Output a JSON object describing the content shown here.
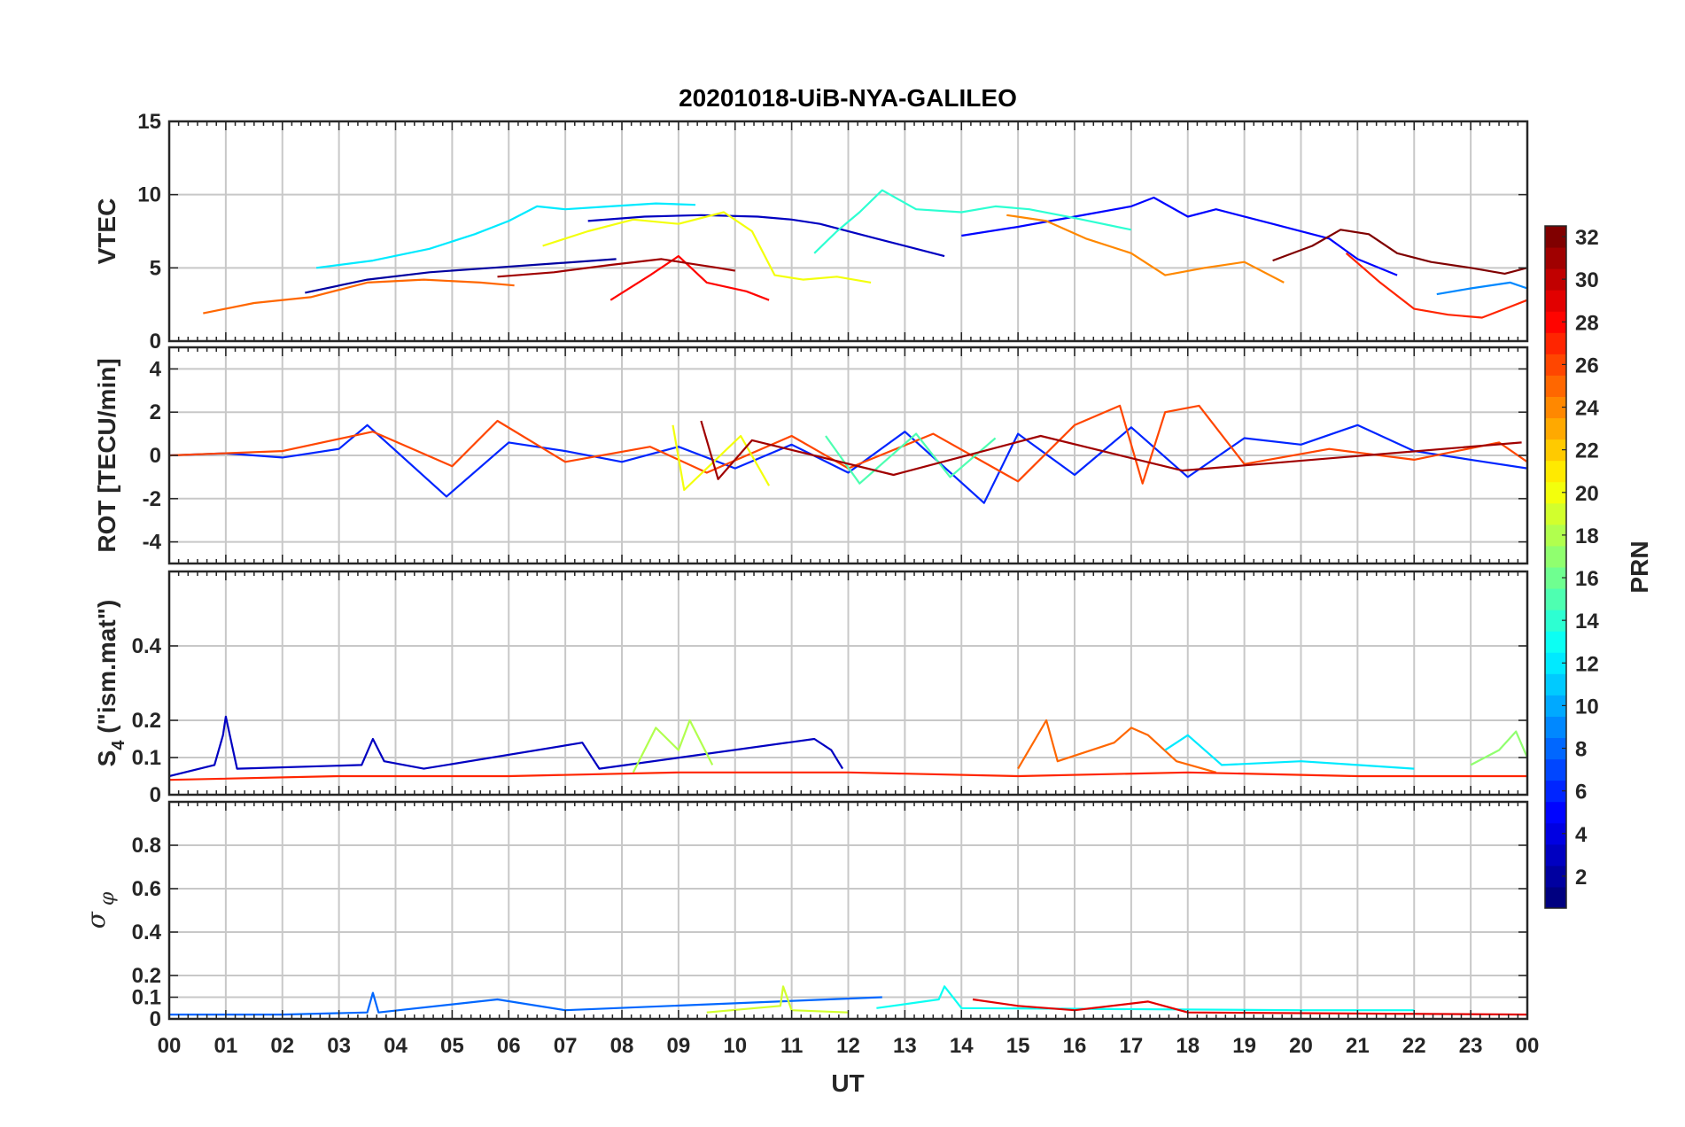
{
  "chart_data": {
    "type": "line",
    "title": "20201018-UiB-NYA-GALILEO",
    "xlabel": "UT",
    "x_ticks": [
      "00",
      "01",
      "02",
      "03",
      "04",
      "05",
      "06",
      "07",
      "08",
      "09",
      "10",
      "11",
      "12",
      "13",
      "14",
      "15",
      "16",
      "17",
      "18",
      "19",
      "20",
      "21",
      "22",
      "23",
      "00"
    ],
    "xlim_hours": [
      0,
      24
    ],
    "grid": true,
    "panels": [
      {
        "id": "vtec",
        "ylabel": "VTEC",
        "ylim": [
          0,
          15
        ],
        "yticks": [
          "0",
          "5",
          "10",
          "15"
        ],
        "yticks_values": [
          0,
          5,
          10,
          15
        ],
        "series": [
          {
            "prn": 2,
            "x": [
              2.4,
              3.5,
              4.6,
              5.7,
              6.8,
              7.9
            ],
            "y": [
              3.3,
              4.2,
              4.7,
              5.0,
              5.3,
              5.6
            ]
          },
          {
            "prn": 3,
            "x": [
              7.4,
              8.4,
              9.4,
              10.4,
              11.0,
              11.5,
              12.5,
              13.7
            ],
            "y": [
              8.2,
              8.5,
              8.6,
              8.5,
              8.3,
              8.0,
              7.0,
              5.8
            ]
          },
          {
            "prn": 5,
            "x": [
              14.0,
              15.0,
              16.0,
              17.0,
              17.4,
              18.0,
              18.5,
              19.5,
              20.5,
              21.0,
              21.7
            ],
            "y": [
              7.2,
              7.8,
              8.5,
              9.2,
              9.8,
              8.5,
              9.0,
              8.0,
              7.0,
              5.6,
              4.5
            ]
          },
          {
            "prn": 9,
            "x": [
              22.4,
              23.0,
              23.7,
              24.0
            ],
            "y": [
              3.2,
              3.6,
              4.0,
              3.6
            ]
          },
          {
            "prn": 12,
            "x": [
              2.6,
              3.6,
              4.6,
              5.4,
              6.0,
              6.5,
              7.0,
              7.8,
              8.6,
              9.3
            ],
            "y": [
              5.0,
              5.5,
              6.3,
              7.3,
              8.2,
              9.2,
              9.0,
              9.2,
              9.4,
              9.3
            ]
          },
          {
            "prn": 14,
            "x": [
              11.4,
              11.8,
              12.2,
              12.6,
              13.2,
              14.0,
              14.6,
              15.2,
              16.0,
              17.0
            ],
            "y": [
              6.0,
              7.5,
              8.8,
              10.3,
              9.0,
              8.8,
              9.2,
              9.0,
              8.4,
              7.6
            ]
          },
          {
            "prn": 20,
            "x": [
              6.6,
              7.4,
              8.2,
              9.0,
              9.8,
              10.3,
              10.7,
              11.2,
              11.8,
              12.4
            ],
            "y": [
              6.5,
              7.5,
              8.3,
              8.0,
              8.8,
              7.5,
              4.5,
              4.2,
              4.4,
              4.0
            ]
          },
          {
            "prn": 25,
            "x": [
              0.6,
              1.5,
              2.5,
              3.5,
              4.5,
              5.5,
              6.1
            ],
            "y": [
              1.9,
              2.6,
              3.0,
              4.0,
              4.2,
              4.0,
              3.8
            ]
          },
          {
            "prn": 28,
            "x": [
              7.8,
              8.5,
              9.0,
              9.5,
              10.2,
              10.6
            ],
            "y": [
              2.8,
              4.5,
              5.8,
              4.0,
              3.4,
              2.8
            ]
          },
          {
            "prn": 31,
            "x": [
              5.8,
              6.8,
              7.8,
              8.7,
              9.2,
              9.7,
              10.0
            ],
            "y": [
              4.4,
              4.7,
              5.2,
              5.6,
              5.3,
              5.0,
              4.8
            ]
          },
          {
            "prn": 32,
            "x": [
              19.5,
              20.2,
              20.7,
              21.2,
              21.7,
              22.3,
              23.0,
              23.6,
              24.0
            ],
            "y": [
              5.5,
              6.5,
              7.6,
              7.3,
              6.0,
              5.4,
              5.0,
              4.6,
              5.0
            ]
          },
          {
            "prn": 24,
            "x": [
              14.8,
              15.5,
              16.2,
              17.0,
              17.6,
              18.3,
              19.0,
              19.7
            ],
            "y": [
              8.6,
              8.2,
              7.0,
              6.0,
              4.5,
              5.0,
              5.4,
              4.0
            ]
          },
          {
            "prn": 27,
            "x": [
              20.8,
              21.4,
              22.0,
              22.6,
              23.2,
              23.6,
              24.0
            ],
            "y": [
              6.0,
              4.0,
              2.2,
              1.8,
              1.6,
              2.2,
              2.8
            ]
          }
        ]
      },
      {
        "id": "rot",
        "ylabel": "ROT [TECU/min]",
        "ylim": [
          -5,
          5
        ],
        "yticks": [
          "-4",
          "-2",
          "0",
          "2",
          "4"
        ],
        "yticks_values": [
          -4,
          -2,
          0,
          2,
          4
        ],
        "series": [
          {
            "prn": 6,
            "x": [
              0,
              1,
              2,
              3,
              3.5,
              4.9,
              6,
              7,
              8,
              9,
              10,
              11,
              12,
              13,
              14.4,
              15,
              16,
              17,
              18,
              19,
              20,
              21,
              22,
              23,
              24
            ],
            "y": [
              0,
              0.1,
              -0.1,
              0.3,
              1.4,
              -1.9,
              0.6,
              0.2,
              -0.3,
              0.4,
              -0.6,
              0.5,
              -0.8,
              1.1,
              -2.2,
              1.0,
              -0.9,
              1.3,
              -1.0,
              0.8,
              0.5,
              1.4,
              0.2,
              -0.2,
              -0.6
            ]
          },
          {
            "prn": 26,
            "x": [
              0,
              2,
              3.6,
              5,
              5.8,
              7,
              8.5,
              9.5,
              11,
              12,
              13.5,
              15,
              16,
              16.8,
              17.2,
              17.6,
              18.2,
              19,
              20.5,
              22,
              23.5,
              24
            ],
            "y": [
              0,
              0.2,
              1.1,
              -0.5,
              1.6,
              -0.3,
              0.4,
              -0.8,
              0.9,
              -0.6,
              1.0,
              -1.2,
              1.4,
              2.3,
              -1.3,
              2.0,
              2.3,
              -0.4,
              0.3,
              -0.2,
              0.6,
              -0.3
            ]
          },
          {
            "prn": 20,
            "x": [
              8.9,
              9.1,
              10.1,
              10.6
            ],
            "y": [
              1.4,
              -1.6,
              0.9,
              -1.4
            ]
          },
          {
            "prn": 15,
            "x": [
              11.6,
              12.2,
              13.2,
              13.8,
              14.6
            ],
            "y": [
              0.9,
              -1.3,
              1.0,
              -1.0,
              0.8
            ]
          },
          {
            "prn": 31,
            "x": [
              9.4,
              9.7,
              10.3,
              12.8,
              15.4,
              17.9,
              23.9
            ],
            "y": [
              1.6,
              -1.1,
              0.7,
              -0.9,
              0.9,
              -0.7,
              0.6
            ]
          }
        ]
      },
      {
        "id": "s4",
        "ylabel_main": "S",
        "ylabel_sub": "4",
        "ylabel_rest": " (\"ism.mat\")",
        "ylim": [
          0,
          0.6
        ],
        "yticks": [
          "0",
          "0.1",
          "0.2",
          "0.4"
        ],
        "yticks_values": [
          0,
          0.1,
          0.2,
          0.4
        ],
        "series": [
          {
            "prn": 3,
            "x": [
              0,
              0.8,
              0.95,
              1.0,
              1.2,
              3.4,
              3.6,
              3.8,
              4.5,
              7.3,
              7.6,
              11.4,
              11.7,
              11.9
            ],
            "y": [
              0.05,
              0.08,
              0.16,
              0.21,
              0.07,
              0.08,
              0.15,
              0.09,
              0.07,
              0.14,
              0.07,
              0.15,
              0.12,
              0.07
            ]
          },
          {
            "prn": 18,
            "x": [
              8.2,
              8.6,
              9.0,
              9.2,
              9.6
            ],
            "y": [
              0.06,
              0.18,
              0.12,
              0.2,
              0.08
            ]
          },
          {
            "prn": 25,
            "x": [
              15.0,
              15.5,
              15.7,
              16.7,
              17.0,
              17.3,
              17.8,
              18.5
            ],
            "y": [
              0.07,
              0.2,
              0.09,
              0.14,
              0.18,
              0.16,
              0.09,
              0.06
            ]
          },
          {
            "prn": 12,
            "x": [
              17.6,
              18.0,
              18.6,
              20.0,
              21.0,
              22.0
            ],
            "y": [
              0.12,
              0.16,
              0.08,
              0.09,
              0.08,
              0.07
            ]
          },
          {
            "prn": 27,
            "x": [
              0,
              3,
              6,
              9,
              12,
              15,
              18,
              21,
              24
            ],
            "y": [
              0.04,
              0.05,
              0.05,
              0.06,
              0.06,
              0.05,
              0.06,
              0.05,
              0.05
            ]
          },
          {
            "prn": 17,
            "x": [
              23.0,
              23.5,
              23.8,
              24.0
            ],
            "y": [
              0.08,
              0.12,
              0.17,
              0.1
            ]
          }
        ]
      },
      {
        "id": "sigma",
        "ylabel_symbol": "σ",
        "ylabel_sub": "φ",
        "ylim": [
          0,
          1
        ],
        "yticks": [
          "0",
          "0.1",
          "0.2",
          "0.4",
          "0.6",
          "0.8"
        ],
        "yticks_values": [
          0,
          0.1,
          0.2,
          0.4,
          0.6,
          0.8
        ],
        "series": [
          {
            "prn": 8,
            "x": [
              0,
              2,
              3.5,
              3.6,
              3.7,
              5.8,
              7,
              12.6
            ],
            "y": [
              0.02,
              0.02,
              0.03,
              0.12,
              0.03,
              0.09,
              0.04,
              0.1
            ]
          },
          {
            "prn": 19,
            "x": [
              9.5,
              10.8,
              10.85,
              11.0,
              12.0
            ],
            "y": [
              0.03,
              0.06,
              0.15,
              0.04,
              0.03
            ]
          },
          {
            "prn": 13,
            "x": [
              12.5,
              13.6,
              13.7,
              14.0,
              20.0,
              22.0
            ],
            "y": [
              0.05,
              0.09,
              0.15,
              0.05,
              0.04,
              0.04
            ]
          },
          {
            "prn": 29,
            "x": [
              14.2,
              15.0,
              16.0,
              17.3,
              18.0,
              24.0
            ],
            "y": [
              0.09,
              0.06,
              0.04,
              0.08,
              0.03,
              0.02
            ]
          }
        ]
      }
    ],
    "colorbar": {
      "label": "PRN",
      "colormap": "jet",
      "range": [
        1,
        32
      ],
      "ticks": [
        "2",
        "4",
        "6",
        "8",
        "10",
        "12",
        "14",
        "16",
        "18",
        "20",
        "22",
        "24",
        "26",
        "28",
        "30",
        "32"
      ],
      "tick_values": [
        2,
        4,
        6,
        8,
        10,
        12,
        14,
        16,
        18,
        20,
        22,
        24,
        26,
        28,
        30,
        32
      ],
      "placement": "right"
    }
  }
}
